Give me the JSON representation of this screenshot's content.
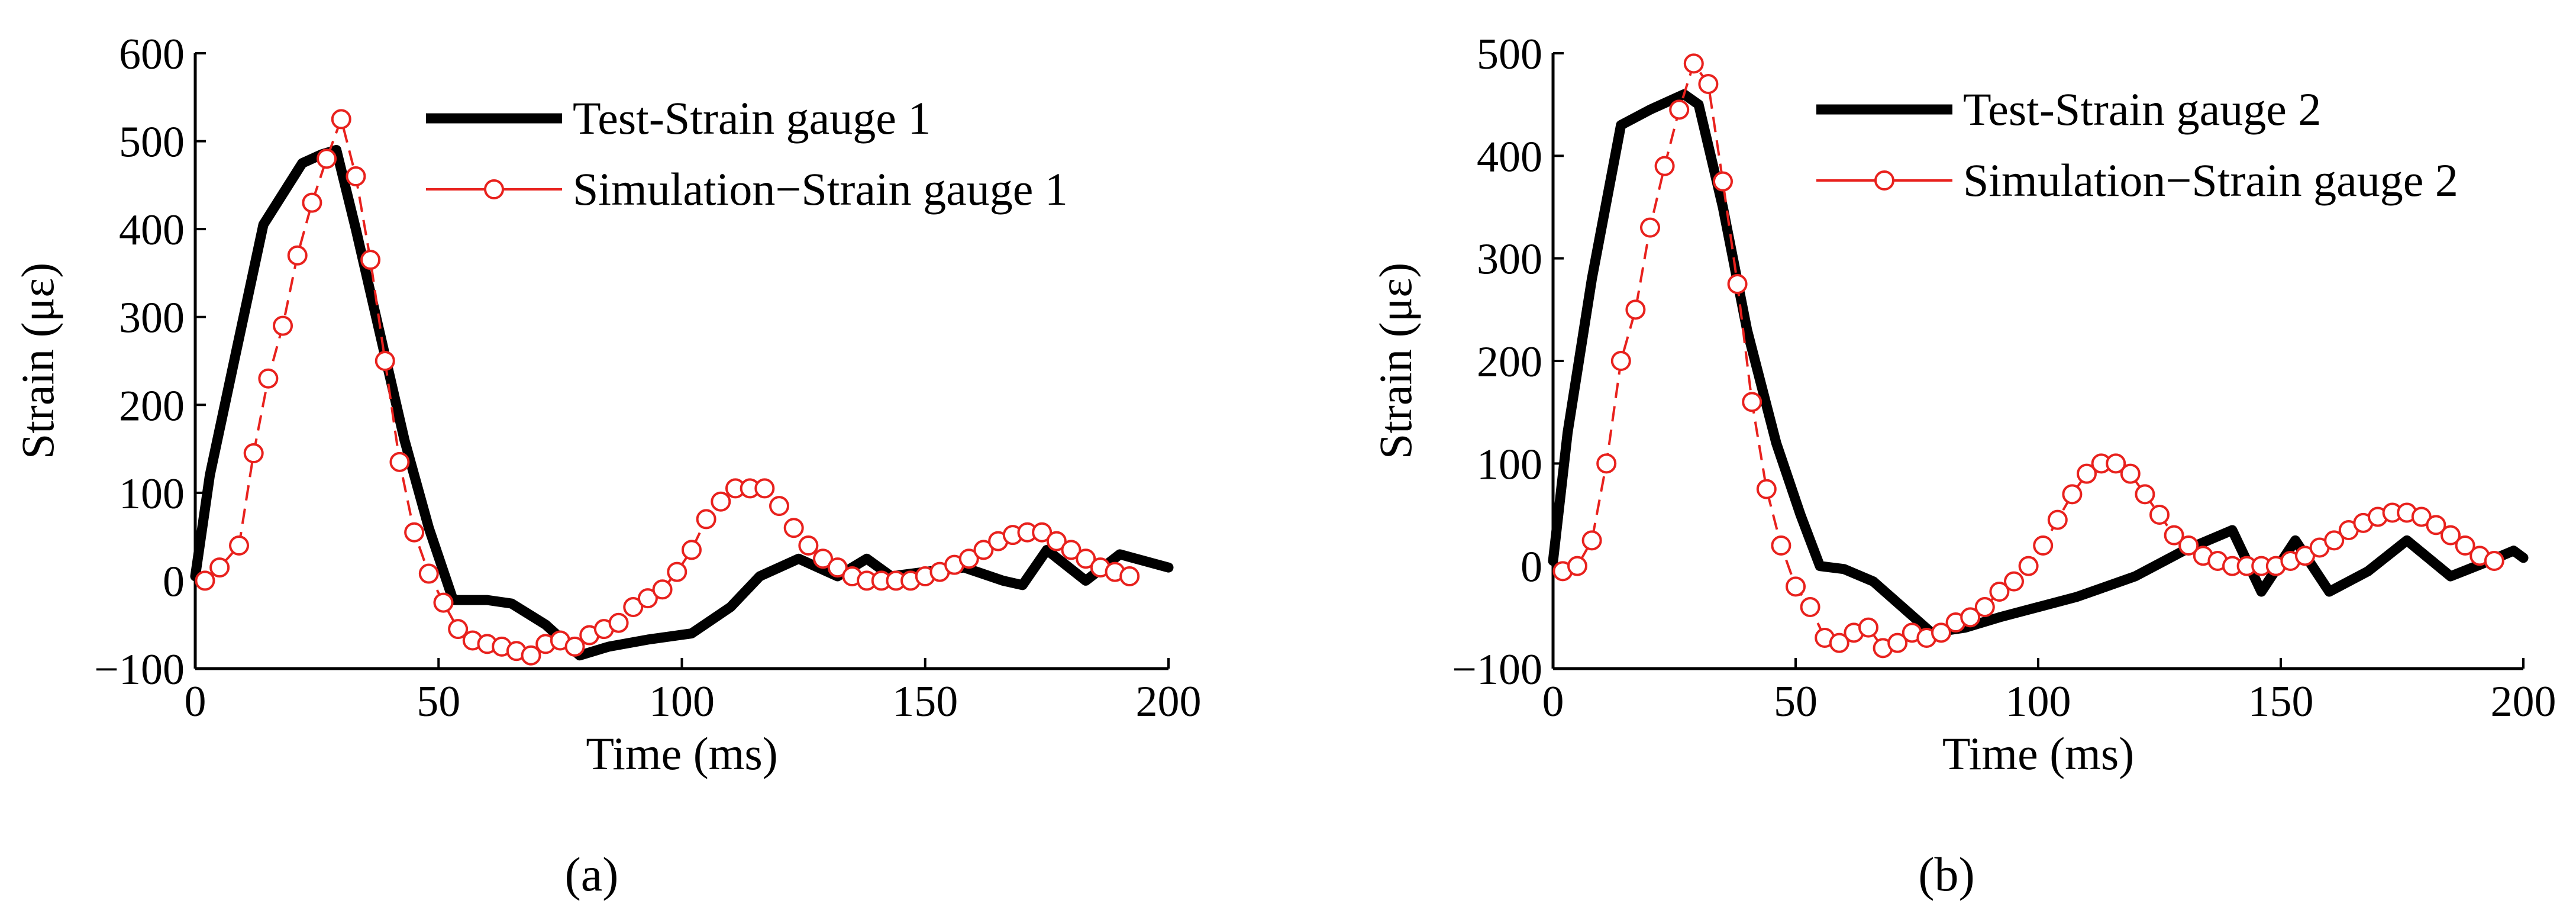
{
  "chart_data": [
    {
      "type": "line",
      "caption": "(a)",
      "xlabel": "Time (ms)",
      "ylabel": "Strain (με)",
      "xlim": [
        0,
        200
      ],
      "ylim": [
        -100,
        600
      ],
      "xticks": [
        0,
        50,
        100,
        150,
        200
      ],
      "yticks": [
        -100,
        0,
        100,
        200,
        300,
        400,
        500,
        600
      ],
      "legend_position": "top-right",
      "series": [
        {
          "name": "Test-Strain gauge 1",
          "color": "#000000",
          "style": "thick-solid",
          "points": [
            [
              0,
              5
            ],
            [
              3,
              120
            ],
            [
              8,
              250
            ],
            [
              14,
              405
            ],
            [
              22,
              475
            ],
            [
              26,
              485
            ],
            [
              29,
              490
            ],
            [
              33,
              400
            ],
            [
              38,
              280
            ],
            [
              43,
              160
            ],
            [
              48,
              60
            ],
            [
              53,
              -22
            ],
            [
              60,
              -22
            ],
            [
              65,
              -26
            ],
            [
              72,
              -50
            ],
            [
              79,
              -85
            ],
            [
              85,
              -75
            ],
            [
              93,
              -67
            ],
            [
              102,
              -60
            ],
            [
              110,
              -30
            ],
            [
              116,
              5
            ],
            [
              124,
              25
            ],
            [
              132,
              5
            ],
            [
              138,
              25
            ],
            [
              143,
              5
            ],
            [
              150,
              10
            ],
            [
              158,
              15
            ],
            [
              166,
              0
            ],
            [
              170,
              -5
            ],
            [
              175,
              35
            ],
            [
              183,
              0
            ],
            [
              190,
              30
            ],
            [
              200,
              15
            ]
          ]
        },
        {
          "name": "Simulation−Strain gauge 1",
          "color": "#e8211d",
          "style": "dashed-circle",
          "points": [
            [
              2,
              0
            ],
            [
              5,
              15
            ],
            [
              9,
              40
            ],
            [
              12,
              145
            ],
            [
              15,
              230
            ],
            [
              18,
              290
            ],
            [
              21,
              370
            ],
            [
              24,
              430
            ],
            [
              27,
              480
            ],
            [
              30,
              525
            ],
            [
              33,
              460
            ],
            [
              36,
              365
            ],
            [
              39,
              250
            ],
            [
              42,
              135
            ],
            [
              45,
              55
            ],
            [
              48,
              8
            ],
            [
              51,
              -25
            ],
            [
              54,
              -55
            ],
            [
              57,
              -68
            ],
            [
              60,
              -72
            ],
            [
              63,
              -75
            ],
            [
              66,
              -80
            ],
            [
              69,
              -85
            ],
            [
              72,
              -72
            ],
            [
              75,
              -68
            ],
            [
              78,
              -75
            ],
            [
              81,
              -62
            ],
            [
              84,
              -55
            ],
            [
              87,
              -48
            ],
            [
              90,
              -30
            ],
            [
              93,
              -20
            ],
            [
              96,
              -10
            ],
            [
              99,
              10
            ],
            [
              102,
              35
            ],
            [
              105,
              70
            ],
            [
              108,
              90
            ],
            [
              111,
              105
            ],
            [
              114,
              105
            ],
            [
              117,
              105
            ],
            [
              120,
              85
            ],
            [
              123,
              60
            ],
            [
              126,
              40
            ],
            [
              129,
              25
            ],
            [
              132,
              15
            ],
            [
              135,
              5
            ],
            [
              138,
              0
            ],
            [
              141,
              0
            ],
            [
              144,
              0
            ],
            [
              147,
              0
            ],
            [
              150,
              5
            ],
            [
              153,
              10
            ],
            [
              156,
              18
            ],
            [
              159,
              25
            ],
            [
              162,
              35
            ],
            [
              165,
              45
            ],
            [
              168,
              52
            ],
            [
              171,
              55
            ],
            [
              174,
              55
            ],
            [
              177,
              45
            ],
            [
              180,
              35
            ],
            [
              183,
              25
            ],
            [
              186,
              15
            ],
            [
              189,
              10
            ],
            [
              192,
              5
            ]
          ]
        }
      ]
    },
    {
      "type": "line",
      "caption": "(b)",
      "xlabel": "Time (ms)",
      "ylabel": "Strain (με)",
      "xlim": [
        0,
        200
      ],
      "ylim": [
        -100,
        500
      ],
      "xticks": [
        0,
        50,
        100,
        150,
        200
      ],
      "yticks": [
        -100,
        0,
        100,
        200,
        300,
        400,
        500
      ],
      "legend_position": "top-right",
      "series": [
        {
          "name": "Test-Strain gauge 2",
          "color": "#000000",
          "style": "thick-solid",
          "points": [
            [
              0,
              5
            ],
            [
              3,
              130
            ],
            [
              8,
              280
            ],
            [
              14,
              430
            ],
            [
              20,
              445
            ],
            [
              27,
              460
            ],
            [
              30,
              450
            ],
            [
              35,
              350
            ],
            [
              40,
              230
            ],
            [
              46,
              120
            ],
            [
              51,
              50
            ],
            [
              55,
              0
            ],
            [
              60,
              -3
            ],
            [
              66,
              -15
            ],
            [
              72,
              -40
            ],
            [
              78,
              -65
            ],
            [
              85,
              -60
            ],
            [
              92,
              -50
            ],
            [
              100,
              -40
            ],
            [
              108,
              -30
            ],
            [
              114,
              -20
            ],
            [
              120,
              -10
            ],
            [
              130,
              15
            ],
            [
              140,
              35
            ],
            [
              146,
              -25
            ],
            [
              153,
              25
            ],
            [
              160,
              -25
            ],
            [
              168,
              -5
            ],
            [
              176,
              25
            ],
            [
              185,
              -10
            ],
            [
              193,
              5
            ],
            [
              198,
              15
            ],
            [
              200,
              8
            ]
          ]
        },
        {
          "name": "Simulation−Strain gauge 2",
          "color": "#e8211d",
          "style": "dashed-circle",
          "points": [
            [
              2,
              -5
            ],
            [
              5,
              0
            ],
            [
              8,
              25
            ],
            [
              11,
              100
            ],
            [
              14,
              200
            ],
            [
              17,
              250
            ],
            [
              20,
              330
            ],
            [
              23,
              390
            ],
            [
              26,
              445
            ],
            [
              29,
              490
            ],
            [
              32,
              470
            ],
            [
              35,
              375
            ],
            [
              38,
              275
            ],
            [
              41,
              160
            ],
            [
              44,
              75
            ],
            [
              47,
              20
            ],
            [
              50,
              -20
            ],
            [
              53,
              -40
            ],
            [
              56,
              -70
            ],
            [
              59,
              -75
            ],
            [
              62,
              -65
            ],
            [
              65,
              -60
            ],
            [
              68,
              -80
            ],
            [
              71,
              -75
            ],
            [
              74,
              -65
            ],
            [
              77,
              -70
            ],
            [
              80,
              -65
            ],
            [
              83,
              -55
            ],
            [
              86,
              -50
            ],
            [
              89,
              -40
            ],
            [
              92,
              -25
            ],
            [
              95,
              -15
            ],
            [
              98,
              0
            ],
            [
              101,
              20
            ],
            [
              104,
              45
            ],
            [
              107,
              70
            ],
            [
              110,
              90
            ],
            [
              113,
              100
            ],
            [
              116,
              100
            ],
            [
              119,
              90
            ],
            [
              122,
              70
            ],
            [
              125,
              50
            ],
            [
              128,
              30
            ],
            [
              131,
              20
            ],
            [
              134,
              10
            ],
            [
              137,
              5
            ],
            [
              140,
              0
            ],
            [
              143,
              0
            ],
            [
              146,
              0
            ],
            [
              149,
              0
            ],
            [
              152,
              5
            ],
            [
              155,
              10
            ],
            [
              158,
              18
            ],
            [
              161,
              25
            ],
            [
              164,
              35
            ],
            [
              167,
              42
            ],
            [
              170,
              48
            ],
            [
              173,
              52
            ],
            [
              176,
              52
            ],
            [
              179,
              48
            ],
            [
              182,
              40
            ],
            [
              185,
              30
            ],
            [
              188,
              20
            ],
            [
              191,
              10
            ],
            [
              194,
              5
            ]
          ]
        }
      ]
    }
  ]
}
